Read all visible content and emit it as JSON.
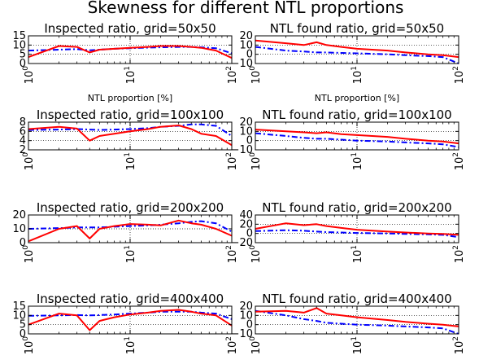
{
  "title": "Skewness for different NTL proportions",
  "colors": {
    "series_a": "#0000ff",
    "series_b": "#ff0000"
  },
  "chart_data": [
    {
      "type": "line",
      "title": "Inspected ratio, grid=50x50",
      "xlabel": "NTL proportion [%]",
      "xscale": "log",
      "xlim": [
        1,
        100
      ],
      "ylim": [
        0,
        15
      ],
      "xticks": [
        1,
        10,
        100
      ],
      "yticks": [
        0,
        5,
        10,
        15
      ],
      "ytick_labels": [
        "0",
        "5",
        "10",
        "15"
      ],
      "grid": true,
      "series": [
        {
          "style": "dash-dot",
          "color": "#0000ff",
          "x": [
            1,
            2,
            3,
            4,
            5,
            7,
            10,
            15,
            20,
            30,
            40,
            50,
            70,
            100
          ],
          "y": [
            7,
            7.5,
            7.8,
            7.2,
            7.5,
            8,
            8.3,
            8.6,
            8.8,
            9,
            9,
            8.8,
            8.3,
            5.5
          ]
        },
        {
          "style": "solid",
          "color": "#ff0000",
          "x": [
            1,
            2,
            3,
            4,
            5,
            7,
            10,
            15,
            20,
            30,
            40,
            50,
            70,
            100
          ],
          "y": [
            3.5,
            9.5,
            9,
            6,
            7.5,
            8,
            8.5,
            9,
            9.5,
            9.5,
            9,
            8.5,
            7,
            3
          ]
        }
      ]
    },
    {
      "type": "line",
      "title": "NTL found ratio, grid=50x50",
      "xlabel": "NTL proportion [%]",
      "xscale": "log",
      "xlim": [
        1,
        100
      ],
      "ylim": [
        -10,
        20
      ],
      "xticks": [
        1,
        10,
        100
      ],
      "yticks": [
        -10,
        0,
        10,
        20
      ],
      "ytick_labels": [
        "−10",
        "0",
        "10",
        "20"
      ],
      "grid": true,
      "series": [
        {
          "style": "dash-dot",
          "color": "#0000ff",
          "x": [
            1,
            2,
            3,
            4,
            5,
            7,
            10,
            20,
            30,
            50,
            70,
            100
          ],
          "y": [
            8,
            4,
            3,
            2,
            2,
            1.5,
            1,
            0,
            -1,
            -2,
            -3,
            -10
          ]
        },
        {
          "style": "solid",
          "color": "#ff0000",
          "x": [
            1,
            2,
            3,
            4,
            5,
            7,
            10,
            20,
            30,
            50,
            70,
            100
          ],
          "y": [
            15,
            12,
            10,
            13,
            10,
            8,
            6,
            4,
            2,
            0,
            -1,
            -3
          ]
        }
      ]
    },
    {
      "type": "line",
      "title": "Inspected ratio, grid=100x100",
      "xscale": "log",
      "xlim": [
        1,
        100
      ],
      "ylim": [
        2,
        8
      ],
      "xticks": [
        1,
        10,
        100
      ],
      "yticks": [
        2,
        4,
        6,
        8
      ],
      "ytick_labels": [
        "2",
        "4",
        "6",
        "8"
      ],
      "grid": true,
      "series": [
        {
          "style": "dash-dot",
          "color": "#0000ff",
          "x": [
            1,
            2,
            3,
            4,
            5,
            7,
            10,
            15,
            20,
            30,
            40,
            50,
            70,
            100
          ],
          "y": [
            6.3,
            6.4,
            6.5,
            6.4,
            6.3,
            6.4,
            6.5,
            6.7,
            7,
            7.2,
            7.5,
            7.5,
            7.2,
            5
          ]
        },
        {
          "style": "solid",
          "color": "#ff0000",
          "x": [
            1,
            2,
            3,
            4,
            5,
            7,
            10,
            15,
            20,
            30,
            40,
            50,
            70,
            100
          ],
          "y": [
            6.5,
            7,
            6.6,
            4,
            5,
            5.5,
            6,
            6.5,
            7,
            7.3,
            6.5,
            5.5,
            5,
            3
          ]
        }
      ]
    },
    {
      "type": "line",
      "title": "NTL found ratio, grid=100x100",
      "xscale": "log",
      "xlim": [
        1,
        100
      ],
      "ylim": [
        -10,
        20
      ],
      "xticks": [
        1,
        10,
        100
      ],
      "yticks": [
        -10,
        0,
        10,
        20
      ],
      "ytick_labels": [
        "−10",
        "0",
        "10",
        "20"
      ],
      "grid": true,
      "series": [
        {
          "style": "dash-dot",
          "color": "#0000ff",
          "x": [
            1,
            2,
            3,
            4,
            5,
            7,
            10,
            20,
            30,
            50,
            70,
            100
          ],
          "y": [
            8,
            5,
            3,
            2,
            2,
            1,
            0,
            -1,
            -2,
            -3,
            -4,
            -7
          ]
        },
        {
          "style": "solid",
          "color": "#ff0000",
          "x": [
            1,
            2,
            3,
            4,
            5,
            7,
            10,
            20,
            30,
            50,
            70,
            100
          ],
          "y": [
            12,
            10,
            9,
            8,
            9,
            7,
            6,
            4,
            2,
            0,
            -1,
            -3
          ]
        }
      ]
    },
    {
      "type": "line",
      "title": "Inspected ratio, grid=200x200",
      "xscale": "log",
      "xlim": [
        1,
        100
      ],
      "ylim": [
        0,
        20
      ],
      "xticks": [
        1,
        10,
        100
      ],
      "yticks": [
        0,
        10,
        20
      ],
      "ytick_labels": [
        "0",
        "10",
        "20"
      ],
      "grid": true,
      "series": [
        {
          "style": "dash-dot",
          "color": "#0000ff",
          "x": [
            1,
            2,
            3,
            4,
            5,
            7,
            10,
            15,
            20,
            30,
            40,
            50,
            70,
            100
          ],
          "y": [
            10,
            10.5,
            11,
            11,
            11,
            11.5,
            12,
            12.5,
            13,
            14,
            15,
            15.5,
            14,
            8
          ]
        },
        {
          "style": "solid",
          "color": "#ff0000",
          "x": [
            1,
            2,
            3,
            4,
            5,
            7,
            10,
            15,
            20,
            30,
            40,
            50,
            70,
            100
          ],
          "y": [
            1,
            10,
            12,
            3,
            10,
            12,
            13.5,
            13,
            12.5,
            16,
            14,
            13,
            10,
            5
          ]
        }
      ]
    },
    {
      "type": "line",
      "title": "NTL found ratio, grid=200x200",
      "xscale": "log",
      "xlim": [
        1,
        100
      ],
      "ylim": [
        -20,
        40
      ],
      "xticks": [
        1,
        10,
        100
      ],
      "yticks": [
        -20,
        0,
        20,
        40
      ],
      "ytick_labels": [
        "−20",
        "0",
        "20",
        "40"
      ],
      "grid": true,
      "series": [
        {
          "style": "dash-dot",
          "color": "#0000ff",
          "x": [
            1,
            2,
            3,
            4,
            5,
            7,
            10,
            20,
            30,
            50,
            70,
            100
          ],
          "y": [
            5,
            7,
            6,
            4,
            3,
            2,
            1,
            0,
            -1,
            -2,
            -3,
            -8
          ]
        },
        {
          "style": "solid",
          "color": "#ff0000",
          "x": [
            1,
            2,
            3,
            4,
            5,
            7,
            10,
            20,
            30,
            50,
            70,
            100
          ],
          "y": [
            10,
            22,
            18,
            20,
            16,
            12,
            8,
            4,
            2,
            0,
            -1,
            -3
          ]
        }
      ]
    },
    {
      "type": "line",
      "title": "Inspected ratio, grid=400x400",
      "xscale": "log",
      "xlim": [
        1,
        100
      ],
      "ylim": [
        0,
        15
      ],
      "xticks": [
        1,
        10,
        100
      ],
      "yticks": [
        0,
        5,
        10,
        15
      ],
      "ytick_labels": [
        "0",
        "5",
        "10",
        "15"
      ],
      "grid": true,
      "series": [
        {
          "style": "dash-dot",
          "color": "#0000ff",
          "x": [
            1,
            2,
            3,
            4,
            5,
            7,
            10,
            15,
            20,
            30,
            40,
            50,
            70,
            100
          ],
          "y": [
            9.8,
            10,
            10.2,
            10,
            10.2,
            10.5,
            11,
            11.5,
            12,
            12,
            12,
            11.5,
            11,
            8
          ]
        },
        {
          "style": "solid",
          "color": "#ff0000",
          "x": [
            1,
            2,
            3,
            4,
            5,
            7,
            10,
            15,
            20,
            30,
            40,
            50,
            70,
            100
          ],
          "y": [
            5,
            11,
            10,
            2,
            7,
            9,
            10.5,
            11.5,
            12.5,
            13,
            12,
            11,
            10,
            4.5
          ]
        }
      ]
    },
    {
      "type": "line",
      "title": "NTL found ratio, grid=400x400",
      "xscale": "log",
      "xlim": [
        1,
        100
      ],
      "ylim": [
        -10,
        20
      ],
      "xticks": [
        1,
        10,
        100
      ],
      "yticks": [
        -10,
        0,
        10,
        20
      ],
      "ytick_labels": [
        "−10",
        "0",
        "10",
        "20"
      ],
      "grid": true,
      "series": [
        {
          "style": "dash-dot",
          "color": "#0000ff",
          "x": [
            1,
            2,
            3,
            4,
            5,
            7,
            10,
            20,
            30,
            50,
            70,
            100
          ],
          "y": [
            15,
            10,
            6,
            4,
            2,
            1,
            0,
            -1,
            -2,
            -3,
            -4,
            -10
          ]
        },
        {
          "style": "solid",
          "color": "#ff0000",
          "x": [
            1,
            2,
            3,
            4,
            5,
            7,
            10,
            20,
            30,
            50,
            70,
            100
          ],
          "y": [
            14,
            15,
            13,
            18,
            12,
            10,
            8,
            5,
            3,
            1,
            0,
            -2
          ]
        }
      ]
    }
  ]
}
